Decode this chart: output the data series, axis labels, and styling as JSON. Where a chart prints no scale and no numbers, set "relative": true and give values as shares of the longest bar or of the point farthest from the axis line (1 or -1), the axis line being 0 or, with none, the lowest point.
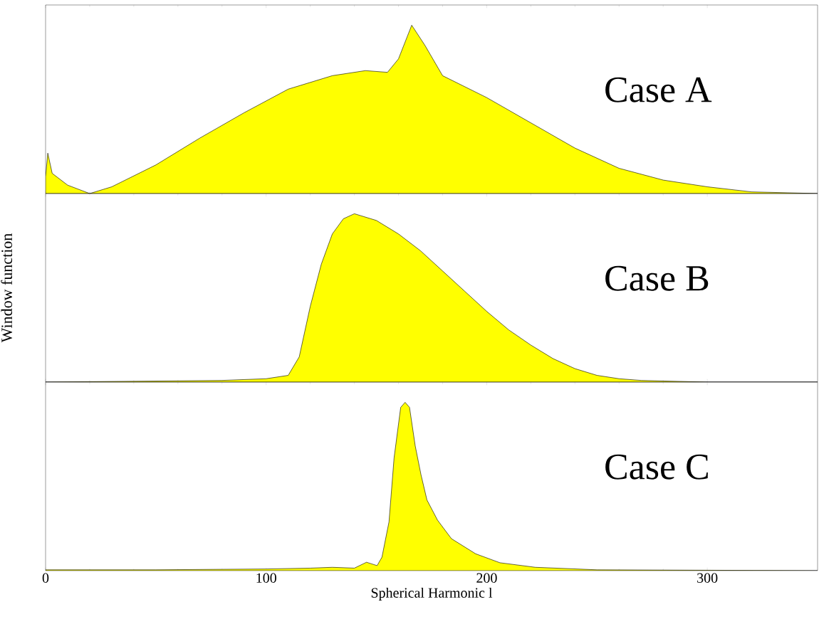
{
  "chart_data": [
    {
      "type": "area",
      "relative": true,
      "color": "#ffff00",
      "xlim": [
        0,
        350
      ],
      "xticks": [
        0,
        100,
        200,
        300
      ],
      "tick_labels": false,
      "annotations": [
        "Case A"
      ],
      "x": [
        0,
        1,
        3,
        10,
        20,
        30,
        50,
        70,
        90,
        110,
        130,
        145,
        155,
        160,
        166,
        172,
        180,
        200,
        220,
        240,
        260,
        280,
        300,
        320,
        350
      ],
      "values": [
        0.1,
        0.24,
        0.12,
        0.05,
        0.0,
        0.04,
        0.17,
        0.33,
        0.48,
        0.62,
        0.7,
        0.73,
        0.72,
        0.8,
        1.0,
        0.88,
        0.7,
        0.57,
        0.42,
        0.27,
        0.15,
        0.08,
        0.04,
        0.01,
        0.0
      ]
    },
    {
      "type": "area",
      "relative": true,
      "color": "#ffff00",
      "xlim": [
        0,
        350
      ],
      "xticks": [
        0,
        100,
        200,
        300
      ],
      "tick_labels": false,
      "annotations": [
        "Case B"
      ],
      "ylabel": "Window function",
      "x": [
        0,
        80,
        100,
        110,
        115,
        120,
        125,
        130,
        135,
        140,
        150,
        160,
        170,
        180,
        190,
        200,
        210,
        220,
        230,
        240,
        250,
        260,
        270,
        300,
        350
      ],
      "values": [
        0.0,
        0.01,
        0.02,
        0.04,
        0.15,
        0.45,
        0.7,
        0.88,
        0.97,
        1.0,
        0.96,
        0.88,
        0.78,
        0.66,
        0.54,
        0.42,
        0.31,
        0.22,
        0.14,
        0.08,
        0.04,
        0.02,
        0.01,
        0.0,
        0.0
      ]
    },
    {
      "type": "area",
      "relative": true,
      "color": "#ffff00",
      "xlim": [
        0,
        350
      ],
      "xticks": [
        0,
        100,
        200,
        300
      ],
      "tick_labels": "x",
      "annotations": [
        "Case C"
      ],
      "xlabel": "Spherical Harmonic l",
      "x": [
        0,
        50,
        100,
        120,
        130,
        140,
        145.5,
        150.3,
        152.5,
        155.7,
        158,
        161,
        163,
        165,
        167.6,
        170.2,
        172.9,
        177.7,
        184,
        195,
        206,
        222,
        250,
        350
      ],
      "values": [
        0.005,
        0.005,
        0.01,
        0.015,
        0.02,
        0.015,
        0.05,
        0.03,
        0.08,
        0.29,
        0.67,
        0.97,
        1.0,
        0.97,
        0.74,
        0.57,
        0.42,
        0.3,
        0.19,
        0.1,
        0.047,
        0.02,
        0.005,
        0.0
      ]
    }
  ]
}
